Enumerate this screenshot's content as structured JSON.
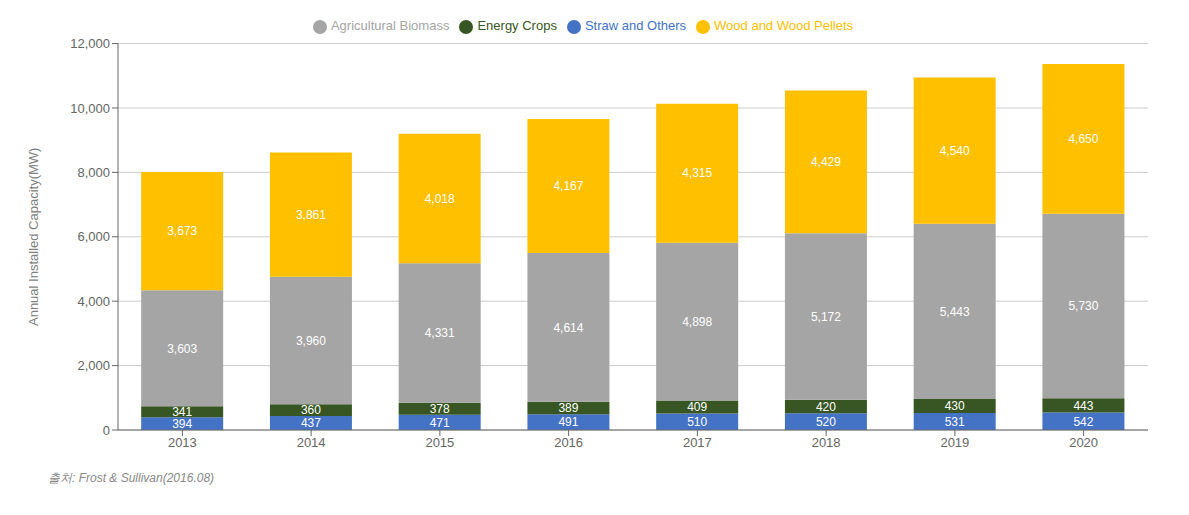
{
  "chart_data": {
    "type": "bar",
    "stacked": true,
    "data_labels": true,
    "grid": true,
    "legend": "top",
    "ylabel": "Annual Installed Capacity(MW)",
    "annotations": [
      "출처: Frost & Sullivan(2016.08)"
    ],
    "categories": [
      "2013",
      "2014",
      "2015",
      "2016",
      "2017",
      "2018",
      "2019",
      "2020"
    ],
    "series": [
      {
        "name": "Straw and Others",
        "color": "#4472C4",
        "values": [
          394,
          437,
          471,
          491,
          510,
          520,
          531,
          542
        ]
      },
      {
        "name": "Energy Crops",
        "color": "#375623",
        "values": [
          341,
          360,
          378,
          389,
          409,
          420,
          430,
          443
        ]
      },
      {
        "name": "Agricultural Biomass",
        "color": "#A5A5A5",
        "values": [
          3603,
          3960,
          4331,
          4614,
          4898,
          5172,
          5443,
          5730
        ],
        "value_labels": [
          "3,603",
          "3,960",
          "4,331",
          "4,614",
          "4,898",
          "5,172",
          "5,443",
          "5,730"
        ]
      },
      {
        "name": "Wood and Wood Pellets",
        "color": "#FFC000",
        "values": [
          3673,
          3861,
          4018,
          4167,
          4315,
          4429,
          4540,
          4650
        ],
        "value_labels": [
          "3,673",
          "3,861",
          "4,018",
          "4,167",
          "4,315",
          "4,429",
          "4,540",
          "4,650"
        ]
      }
    ],
    "ylim": [
      0,
      12000
    ],
    "yticks": [
      0,
      {
        "value": 2000,
        "label": "2,000"
      },
      {
        "value": 4000,
        "label": "4,000"
      },
      {
        "value": 6000,
        "label": "6,000"
      },
      {
        "value": 8000,
        "label": "8,000"
      },
      {
        "value": 10000,
        "label": "10,000"
      },
      {
        "value": 12000,
        "label": "12,000"
      }
    ]
  }
}
